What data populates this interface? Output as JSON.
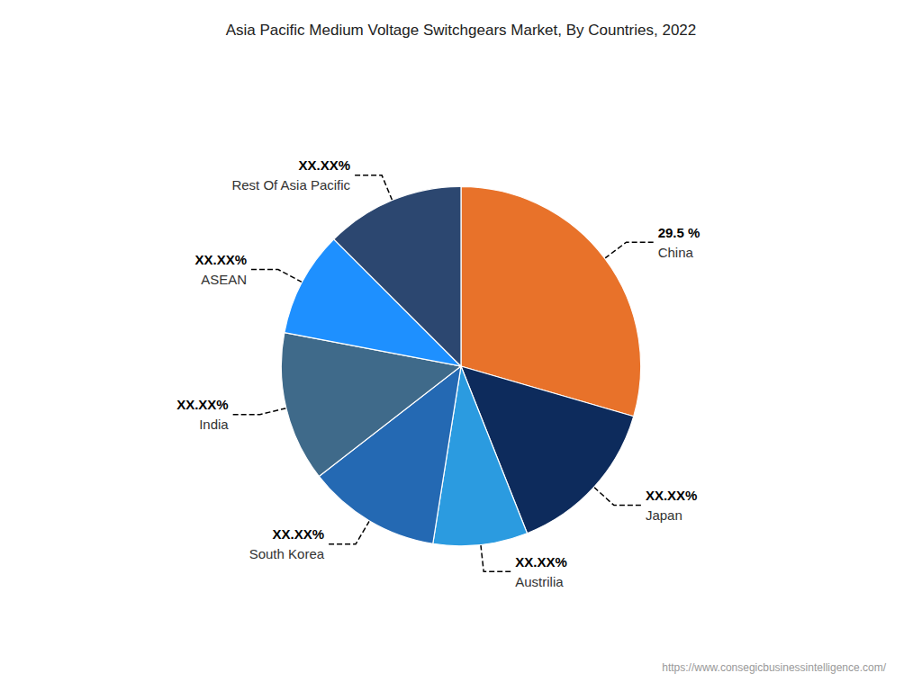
{
  "chart_data": {
    "type": "pie",
    "title": "Asia Pacific Medium Voltage Switchgears Market, By Countries, 2022",
    "categories": [
      "China",
      "Japan",
      "Austrilia",
      "South Korea",
      "India",
      "ASEAN",
      "Rest Of Asia Pacific"
    ],
    "values": [
      29.5,
      14.5,
      8.5,
      12.0,
      13.5,
      9.5,
      12.5
    ],
    "value_labels": [
      "29.5 %",
      "XX.XX%",
      "XX.XX%",
      "XX.XX%",
      "XX.XX%",
      "XX.XX%",
      "XX.XX%"
    ],
    "colors": [
      "#E8722A",
      "#0D2B5C",
      "#2B9BE0",
      "#2469B3",
      "#3F6A8A",
      "#1E90FF",
      "#2C4770"
    ],
    "data_labels": true,
    "annotations": [
      "https://www.consegicbusinessintelligence.com/"
    ]
  }
}
